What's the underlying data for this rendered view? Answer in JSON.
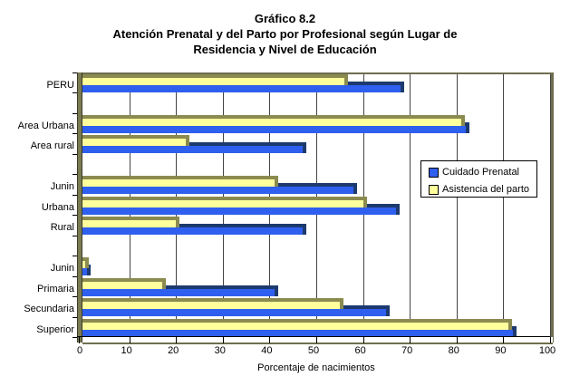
{
  "title": {
    "line1": "Gráfico 8.2",
    "line2": "Atención Prenatal y del Parto por Profesional según Lugar de",
    "line3": "Residencia y Nivel de Educación"
  },
  "axis": {
    "x_ticks": [
      0,
      10,
      20,
      30,
      40,
      50,
      60,
      70,
      80,
      90,
      100
    ],
    "x_title": "Porcentaje de nacimientos"
  },
  "legend": {
    "position": "middle-right",
    "items": [
      "Cuidado Prenatal",
      "Asistencia del parto"
    ]
  },
  "colors": {
    "blue_front": "#2f5fee",
    "blue_dark": "#1d3a6e",
    "yellow_front": "#ffff9c",
    "yellow_dark": "#8b8b50",
    "wall": "#7a7a52",
    "frame": "#6e6e50",
    "gridline": "#444444",
    "background": "#ffffff"
  },
  "chart_data": {
    "type": "bar",
    "orientation": "horizontal",
    "title": "Gráfico 8.2 — Atención Prenatal y del Parto por Profesional según Lugar de Residencia y Nivel de Educación",
    "xlabel": "Porcentaje de nacimientos",
    "xlim": [
      0,
      100
    ],
    "x_tick_step": 10,
    "grid": true,
    "style": "3d-effect",
    "categories": [
      "PERU",
      "",
      "Area Urbana",
      "Area rural",
      "",
      "Junin",
      "Urbana",
      "Rural",
      "",
      "Junin",
      "Primaria",
      "Secundaria",
      "Superior"
    ],
    "series": [
      {
        "name": "Cuidado Prenatal",
        "color": "#2f5fee",
        "values": [
          68,
          null,
          82,
          47,
          null,
          58,
          67,
          47,
          null,
          1,
          41,
          65,
          92
        ]
      },
      {
        "name": "Asistencia del parto",
        "color": "#ffff9c",
        "values": [
          56,
          null,
          81,
          22,
          null,
          41,
          60,
          20,
          null,
          0.5,
          17,
          55,
          91
        ]
      }
    ],
    "legend_position": "middle-right"
  }
}
